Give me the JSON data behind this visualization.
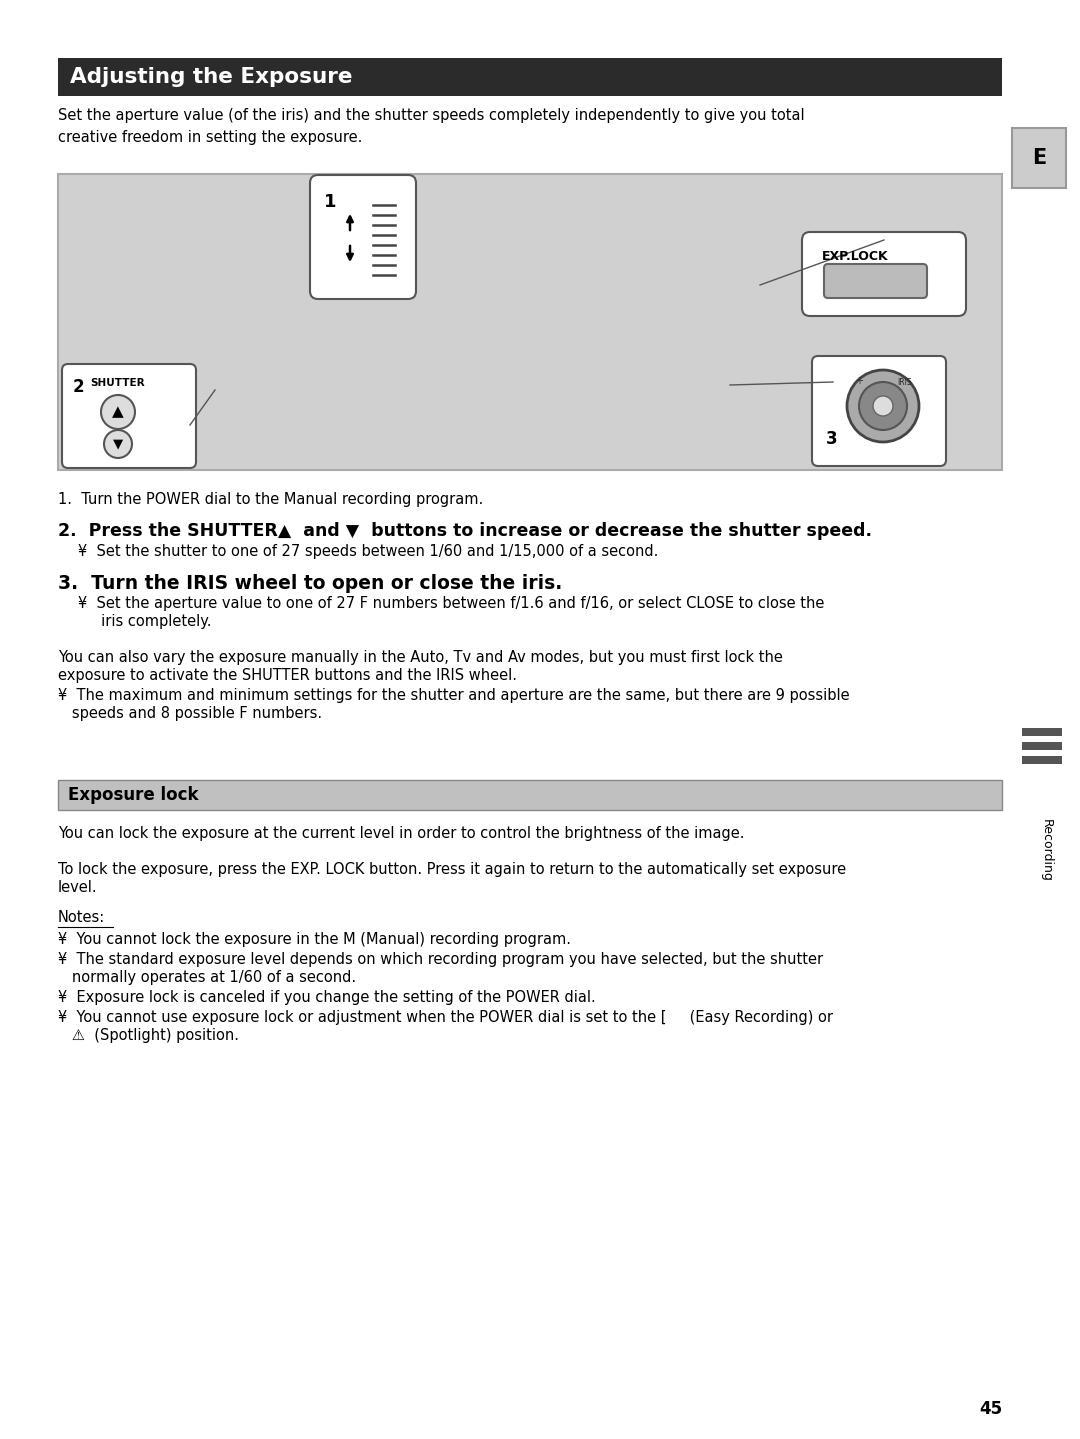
{
  "page_bg": "#ffffff",
  "title": "Adjusting the Exposure",
  "title_bg": "#2b2b2b",
  "title_color": "#ffffff",
  "tab_letter": "E",
  "tab_bg": "#cccccc",
  "section2_title": "Exposure lock",
  "section2_bg": "#c0c0c0",
  "intro_text": "Set the aperture value (of the iris) and the shutter speeds completely independently to give you total\ncreative freedom in setting the exposure.",
  "diagram_bg": "#d0d0d0",
  "step1": "1.  Turn the POWER dial to the Manual recording program.",
  "step2_bold": "2.  Press the SHUTTER▲  and ▼  buttons to increase or decrease the shutter speed.",
  "step2_sub": "¥  Set the shutter to one of 27 speeds between 1/60 and 1/15,000 of a second.",
  "step3_bold": "3.  Turn the IRIS wheel to open or close the iris.",
  "step3_sub1": "¥  Set the aperture value to one of 27 F numbers between f/1.6 and f/16, or select CLOSE to close the",
  "step3_sub2": "     iris completely.",
  "para1_line1": "You can also vary the exposure manually in the Auto, Tv and Av modes, but you must first lock the",
  "para1_line2": "exposure to activate the SHUTTER buttons and the IRIS wheel.",
  "para2": "¥  The maximum and minimum settings for the shutter and aperture are the same, but there are 9 possible",
  "para2b": "   speeds and 8 possible F numbers.",
  "exp_lock_intro": "You can lock the exposure at the current level in order to control the brightness of the image.",
  "exp_lock_para1": "To lock the exposure, press the EXP. LOCK button. Press it again to return to the automatically set exposure",
  "exp_lock_para2": "level.",
  "notes_title": "Notes:",
  "note1": "¥  You cannot lock the exposure in the M (Manual) recording program.",
  "note2a": "¥  The standard exposure level depends on which recording program you have selected, but the shutter",
  "note2b": "   normally operates at 1/60 of a second.",
  "note3": "¥  Exposure lock is canceled if you change the setting of the POWER dial.",
  "note4": "¥  You cannot use exposure lock or adjustment when the POWER dial is set to the [     (Easy Recording) or",
  "note4b": "   ⚠  (Spotlight) position.",
  "page_number": "45",
  "recording_text": "Recording"
}
